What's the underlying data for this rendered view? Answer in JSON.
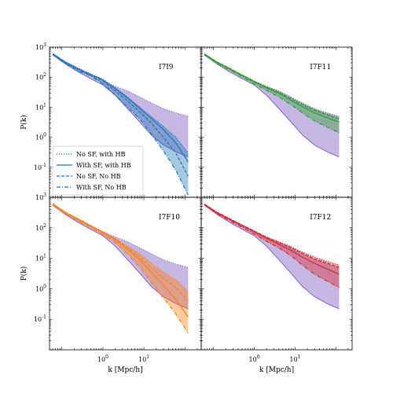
{
  "chart_data": {
    "type": "area",
    "xlabel": "k [Mpc/h]",
    "ylabel": "P(k)",
    "xscale": "log",
    "yscale": "log",
    "xlim": [
      0.05,
      250
    ],
    "ylim": [
      0.01,
      1000
    ],
    "x_tick_labels": [
      {
        "value": 1,
        "label": "10^0"
      },
      {
        "value": 10,
        "label": "10^1"
      }
    ],
    "y_tick_labels": [
      {
        "value": 0.1,
        "label": "10^-1"
      },
      {
        "value": 1,
        "label": "10^0"
      },
      {
        "value": 10,
        "label": "10^1"
      },
      {
        "value": 100,
        "label": "10^2"
      },
      {
        "value": 1000,
        "label": "10^3"
      }
    ],
    "legend": {
      "panel": 0,
      "placement": "lower-left",
      "entries": [
        {
          "label": "No SF, with HB",
          "style": "dotted"
        },
        {
          "label": "With SF, with HB",
          "style": "solid"
        },
        {
          "label": "No SF, No HB",
          "style": "dashed"
        },
        {
          "label": "With SF, No HB",
          "style": "dashdot"
        }
      ]
    },
    "reference_band": {
      "color": "#b39ddb",
      "edge_color": "#7e57c2",
      "x": [
        0.06,
        0.12,
        0.25,
        0.5,
        1,
        2,
        4,
        8,
        15,
        30,
        60,
        120
      ],
      "upper": [
        600,
        330,
        200,
        120,
        75,
        50,
        35,
        22,
        14,
        9,
        6.5,
        5
      ],
      "lower": [
        550,
        280,
        150,
        90,
        55,
        25,
        9,
        3.2,
        1.2,
        0.55,
        0.33,
        0.22
      ]
    },
    "panels": [
      {
        "title": "I7I9",
        "color": "#1f77b4",
        "x": [
          0.06,
          0.12,
          0.25,
          0.5,
          1,
          2,
          4,
          8,
          15,
          30,
          60,
          120
        ],
        "band_upper": [
          620,
          330,
          200,
          130,
          85,
          45,
          22,
          10,
          5,
          2.3,
          1.0,
          0.3
        ],
        "band_lower": [
          560,
          280,
          160,
          110,
          60,
          25,
          10,
          4,
          1.3,
          0.35,
          0.08,
          0.012
        ],
        "series": [
          {
            "name": "No SF, with HB",
            "style": "dotted",
            "values": [
              620,
              330,
              200,
              130,
              85,
              45,
              22,
              10,
              5,
              2.3,
              1.0,
              0.3
            ]
          },
          {
            "name": "With SF, with HB",
            "style": "solid",
            "values": [
              600,
              320,
              190,
              125,
              82,
              42,
              20,
              9,
              4.3,
              1.8,
              0.65,
              0.15
            ]
          },
          {
            "name": "No SF, No HB",
            "style": "dashed",
            "values": [
              590,
              300,
              180,
              118,
              75,
              35,
              16,
              7,
              3.0,
              1.0,
              0.3,
              0.05
            ]
          },
          {
            "name": "With SF, No HB",
            "style": "dashdot",
            "values": [
              560,
              280,
              160,
              110,
              60,
              25,
              10,
              4,
              1.3,
              0.35,
              0.08,
              0.012
            ]
          }
        ]
      },
      {
        "title": "I7F11",
        "color": "#2ca02c",
        "x": [
          0.06,
          0.12,
          0.25,
          0.5,
          1,
          2,
          4,
          8,
          15,
          30,
          60,
          120
        ],
        "band_upper": [
          600,
          330,
          200,
          120,
          75,
          48,
          33,
          20,
          13,
          8.5,
          6,
          4.5
        ],
        "band_lower": [
          550,
          290,
          170,
          105,
          60,
          36,
          22,
          12,
          6.5,
          3.5,
          2.2,
          1.4
        ],
        "series": [
          {
            "name": "No SF, with HB",
            "style": "dotted",
            "values": [
              600,
              330,
              200,
              120,
              75,
              48,
              33,
              20,
              13,
              8.5,
              6,
              4.5
            ]
          },
          {
            "name": "With SF, with HB",
            "style": "solid",
            "values": [
              585,
              315,
              190,
              115,
              70,
              44,
              29,
              17,
              10.5,
              6.5,
              4.5,
              3.2
            ]
          },
          {
            "name": "No SF, No HB",
            "style": "dashed",
            "values": [
              595,
              325,
              195,
              118,
              73,
              46,
              31,
              19,
              12,
              7.8,
              5.5,
              4.0
            ]
          },
          {
            "name": "With SF, No HB",
            "style": "dashdot",
            "values": [
              550,
              290,
              170,
              105,
              60,
              36,
              22,
              12,
              6.5,
              3.5,
              2.2,
              1.4
            ]
          }
        ]
      },
      {
        "title": "I7F10",
        "color": "#ff7f0e",
        "x": [
          0.06,
          0.12,
          0.25,
          0.5,
          1,
          2,
          4,
          8,
          15,
          30,
          60,
          120
        ],
        "band_upper": [
          620,
          330,
          200,
          120,
          75,
          45,
          25,
          14,
          7,
          3.5,
          2,
          0.8
        ],
        "band_lower": [
          560,
          290,
          165,
          105,
          60,
          33,
          14,
          5,
          1.6,
          0.5,
          0.15,
          0.035
        ],
        "series": [
          {
            "name": "No SF, with HB",
            "style": "dotted",
            "values": [
              620,
              330,
              200,
              120,
              75,
              45,
              25,
              14,
              7,
              3.5,
              2,
              0.8
            ]
          },
          {
            "name": "With SF, with HB",
            "style": "solid",
            "values": [
              600,
              320,
              190,
              115,
              70,
              40,
              20,
              9,
              3.5,
              1.3,
              0.45,
              0.12
            ]
          },
          {
            "name": "No SF, No HB",
            "style": "dashed",
            "values": [
              610,
              325,
              195,
              118,
              72,
              42,
              22,
              11,
              5,
              2.2,
              1.1,
              0.4
            ]
          },
          {
            "name": "With SF, No HB",
            "style": "dashdot",
            "values": [
              560,
              290,
              165,
              105,
              60,
              33,
              14,
              5,
              1.6,
              0.5,
              0.15,
              0.035
            ]
          }
        ]
      },
      {
        "title": "I7F12",
        "color": "#d62728",
        "x": [
          0.06,
          0.12,
          0.25,
          0.5,
          1,
          2,
          4,
          8,
          15,
          30,
          60,
          120
        ],
        "band_upper": [
          600,
          330,
          200,
          125,
          80,
          50,
          35,
          24,
          16,
          11,
          8,
          6
        ],
        "band_lower": [
          560,
          290,
          170,
          105,
          62,
          36,
          22,
          12,
          6,
          3,
          1.8,
          1.1
        ],
        "series": [
          {
            "name": "No SF, with HB",
            "style": "dotted",
            "values": [
              600,
              330,
              200,
              125,
              80,
              50,
              35,
              24,
              16,
              11,
              8,
              6
            ]
          },
          {
            "name": "With SF, with HB",
            "style": "solid",
            "values": [
              585,
              315,
              190,
              118,
              74,
              45,
              29,
              18,
              11,
              6.8,
              4.5,
              3
            ]
          },
          {
            "name": "No SF, No HB",
            "style": "dashed",
            "values": [
              595,
              325,
              196,
              122,
              78,
              48,
              33,
              22,
              14.5,
              9.5,
              7,
              5
            ]
          },
          {
            "name": "With SF, No HB",
            "style": "dashdot",
            "values": [
              560,
              290,
              170,
              105,
              62,
              36,
              22,
              12,
              6,
              3,
              1.8,
              1.1
            ]
          }
        ]
      }
    ]
  }
}
